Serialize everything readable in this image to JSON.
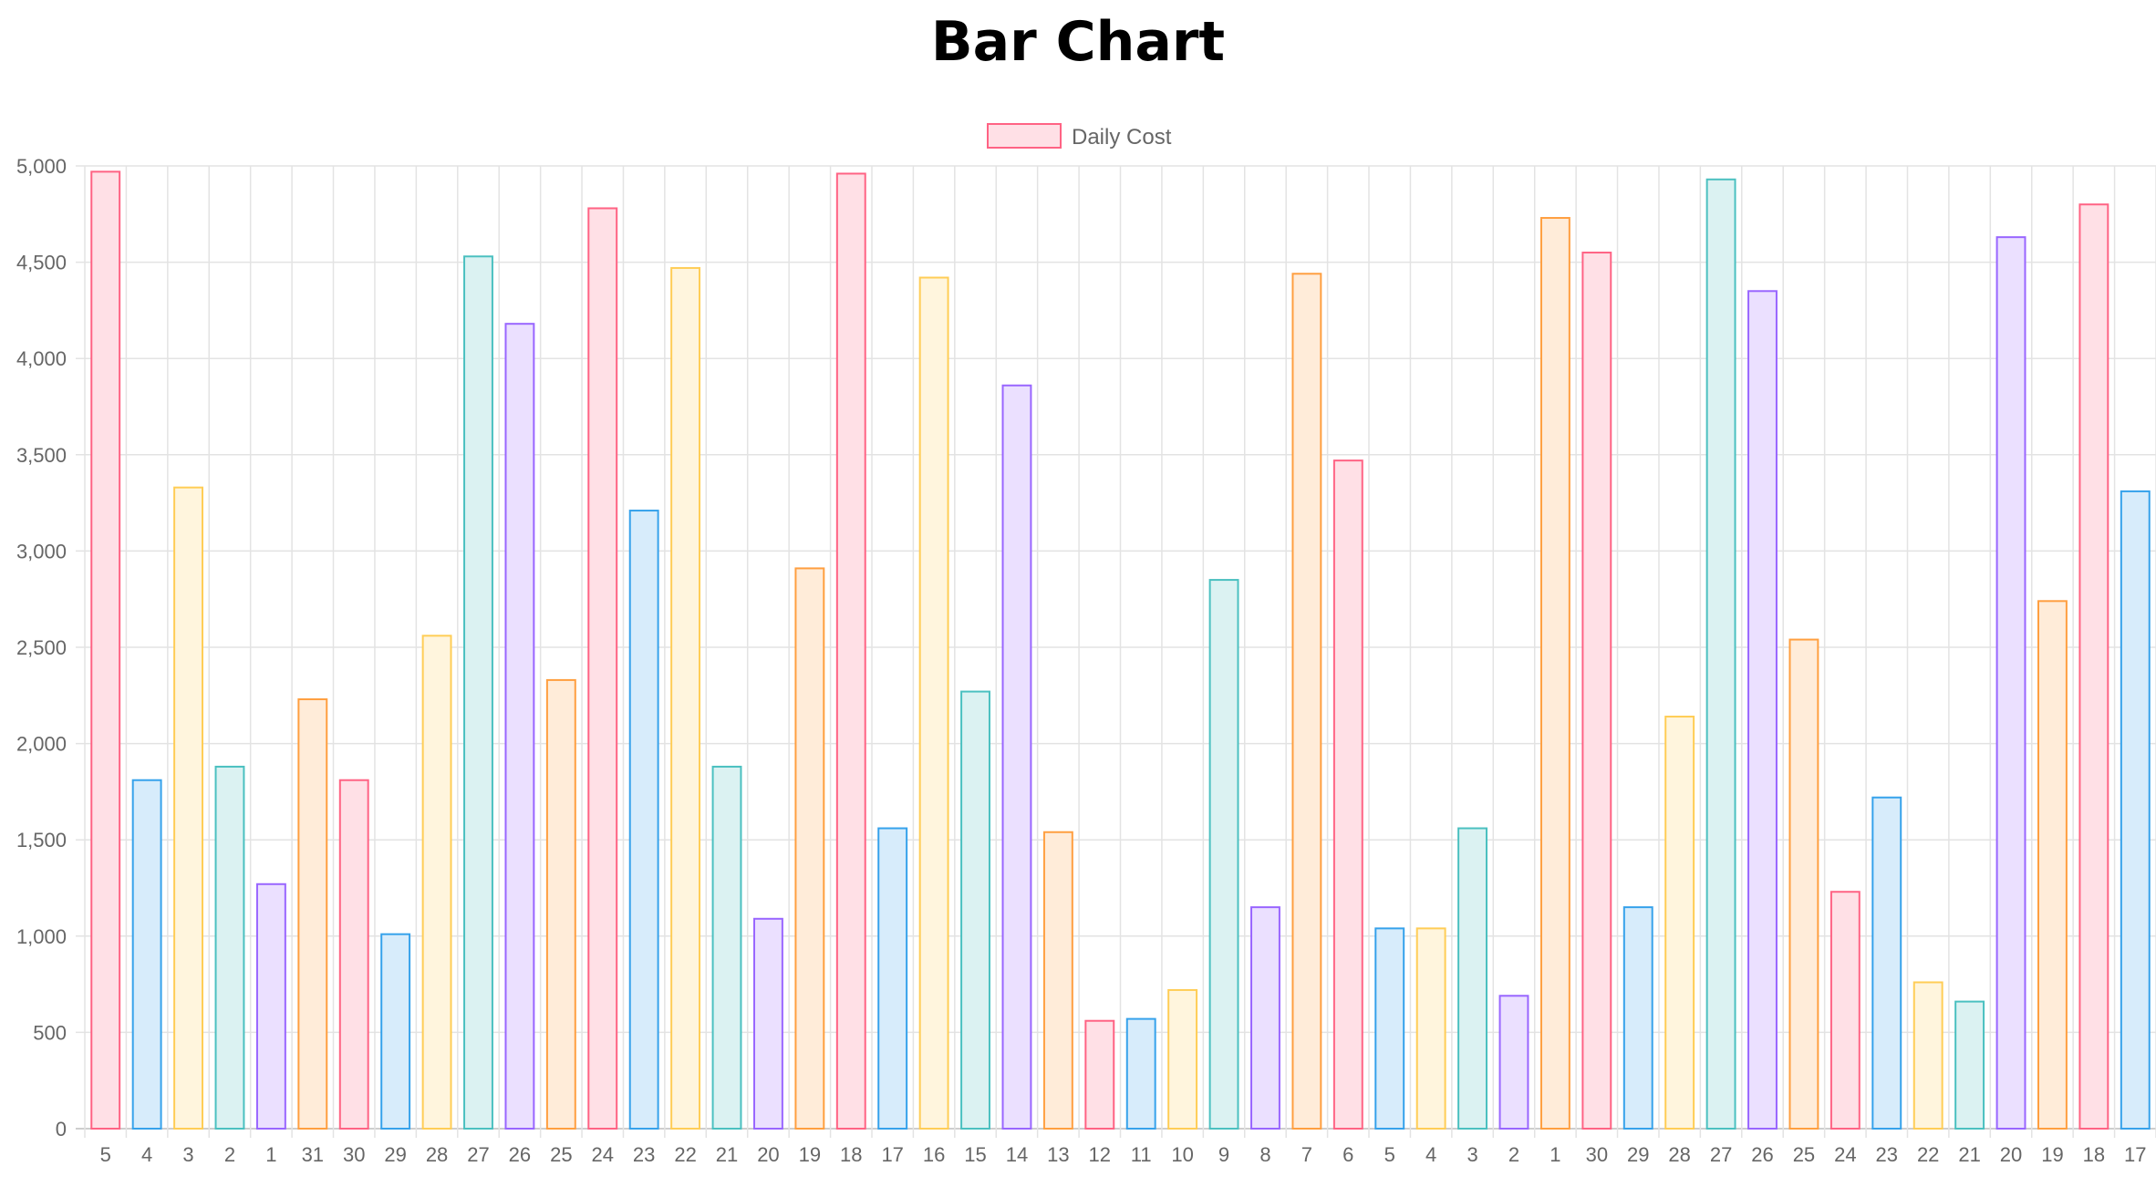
{
  "chart_data": {
    "type": "bar",
    "title": "Bar Chart",
    "xlabel": "",
    "ylabel": "",
    "ylim": [
      0,
      5000
    ],
    "yticks": [
      0,
      500,
      1000,
      1500,
      2000,
      2500,
      3000,
      3500,
      4000,
      4500,
      5000
    ],
    "ytick_labels": [
      "0",
      "500",
      "1,000",
      "1,500",
      "2,000",
      "2,500",
      "3,000",
      "3,500",
      "4,000",
      "4,500",
      "5,000"
    ],
    "grid": true,
    "legend_position": "top-center",
    "categories": [
      "5",
      "4",
      "3",
      "2",
      "1",
      "31",
      "30",
      "29",
      "28",
      "27",
      "26",
      "25",
      "24",
      "23",
      "22",
      "21",
      "20",
      "19",
      "18",
      "17",
      "16",
      "15",
      "14",
      "13",
      "12",
      "11",
      "10",
      "9",
      "8",
      "7",
      "6",
      "5",
      "4",
      "3",
      "2",
      "1",
      "30",
      "29",
      "28",
      "27",
      "26",
      "25",
      "24",
      "23",
      "22",
      "21",
      "20",
      "19",
      "18",
      "17"
    ],
    "series": [
      {
        "name": "Daily Cost",
        "legend_fill": "#ffe0e6",
        "legend_stroke": "#ff6384",
        "values": [
          4970,
          1810,
          3330,
          1880,
          1270,
          2230,
          1810,
          1010,
          2560,
          4530,
          4180,
          2330,
          4780,
          3210,
          4470,
          1880,
          1090,
          2910,
          4960,
          1560,
          4420,
          2270,
          3860,
          1540,
          560,
          570,
          720,
          2850,
          1150,
          4440,
          3470,
          1040,
          1040,
          1560,
          690,
          4730,
          4550,
          1150,
          2140,
          4930,
          4350,
          2540,
          1230,
          1720,
          760,
          660,
          4630,
          2740,
          4800,
          3310
        ]
      }
    ],
    "palette": [
      {
        "stroke": "#ff6384",
        "fill": "#ffe0e6"
      },
      {
        "stroke": "#36a2eb",
        "fill": "#d7ecfb"
      },
      {
        "stroke": "#ffcd56",
        "fill": "#fff5dd"
      },
      {
        "stroke": "#4bc0c0",
        "fill": "#dbf2f2"
      },
      {
        "stroke": "#9966ff",
        "fill": "#ebe0ff"
      },
      {
        "stroke": "#ff9f40",
        "fill": "#ffecd9"
      }
    ]
  }
}
